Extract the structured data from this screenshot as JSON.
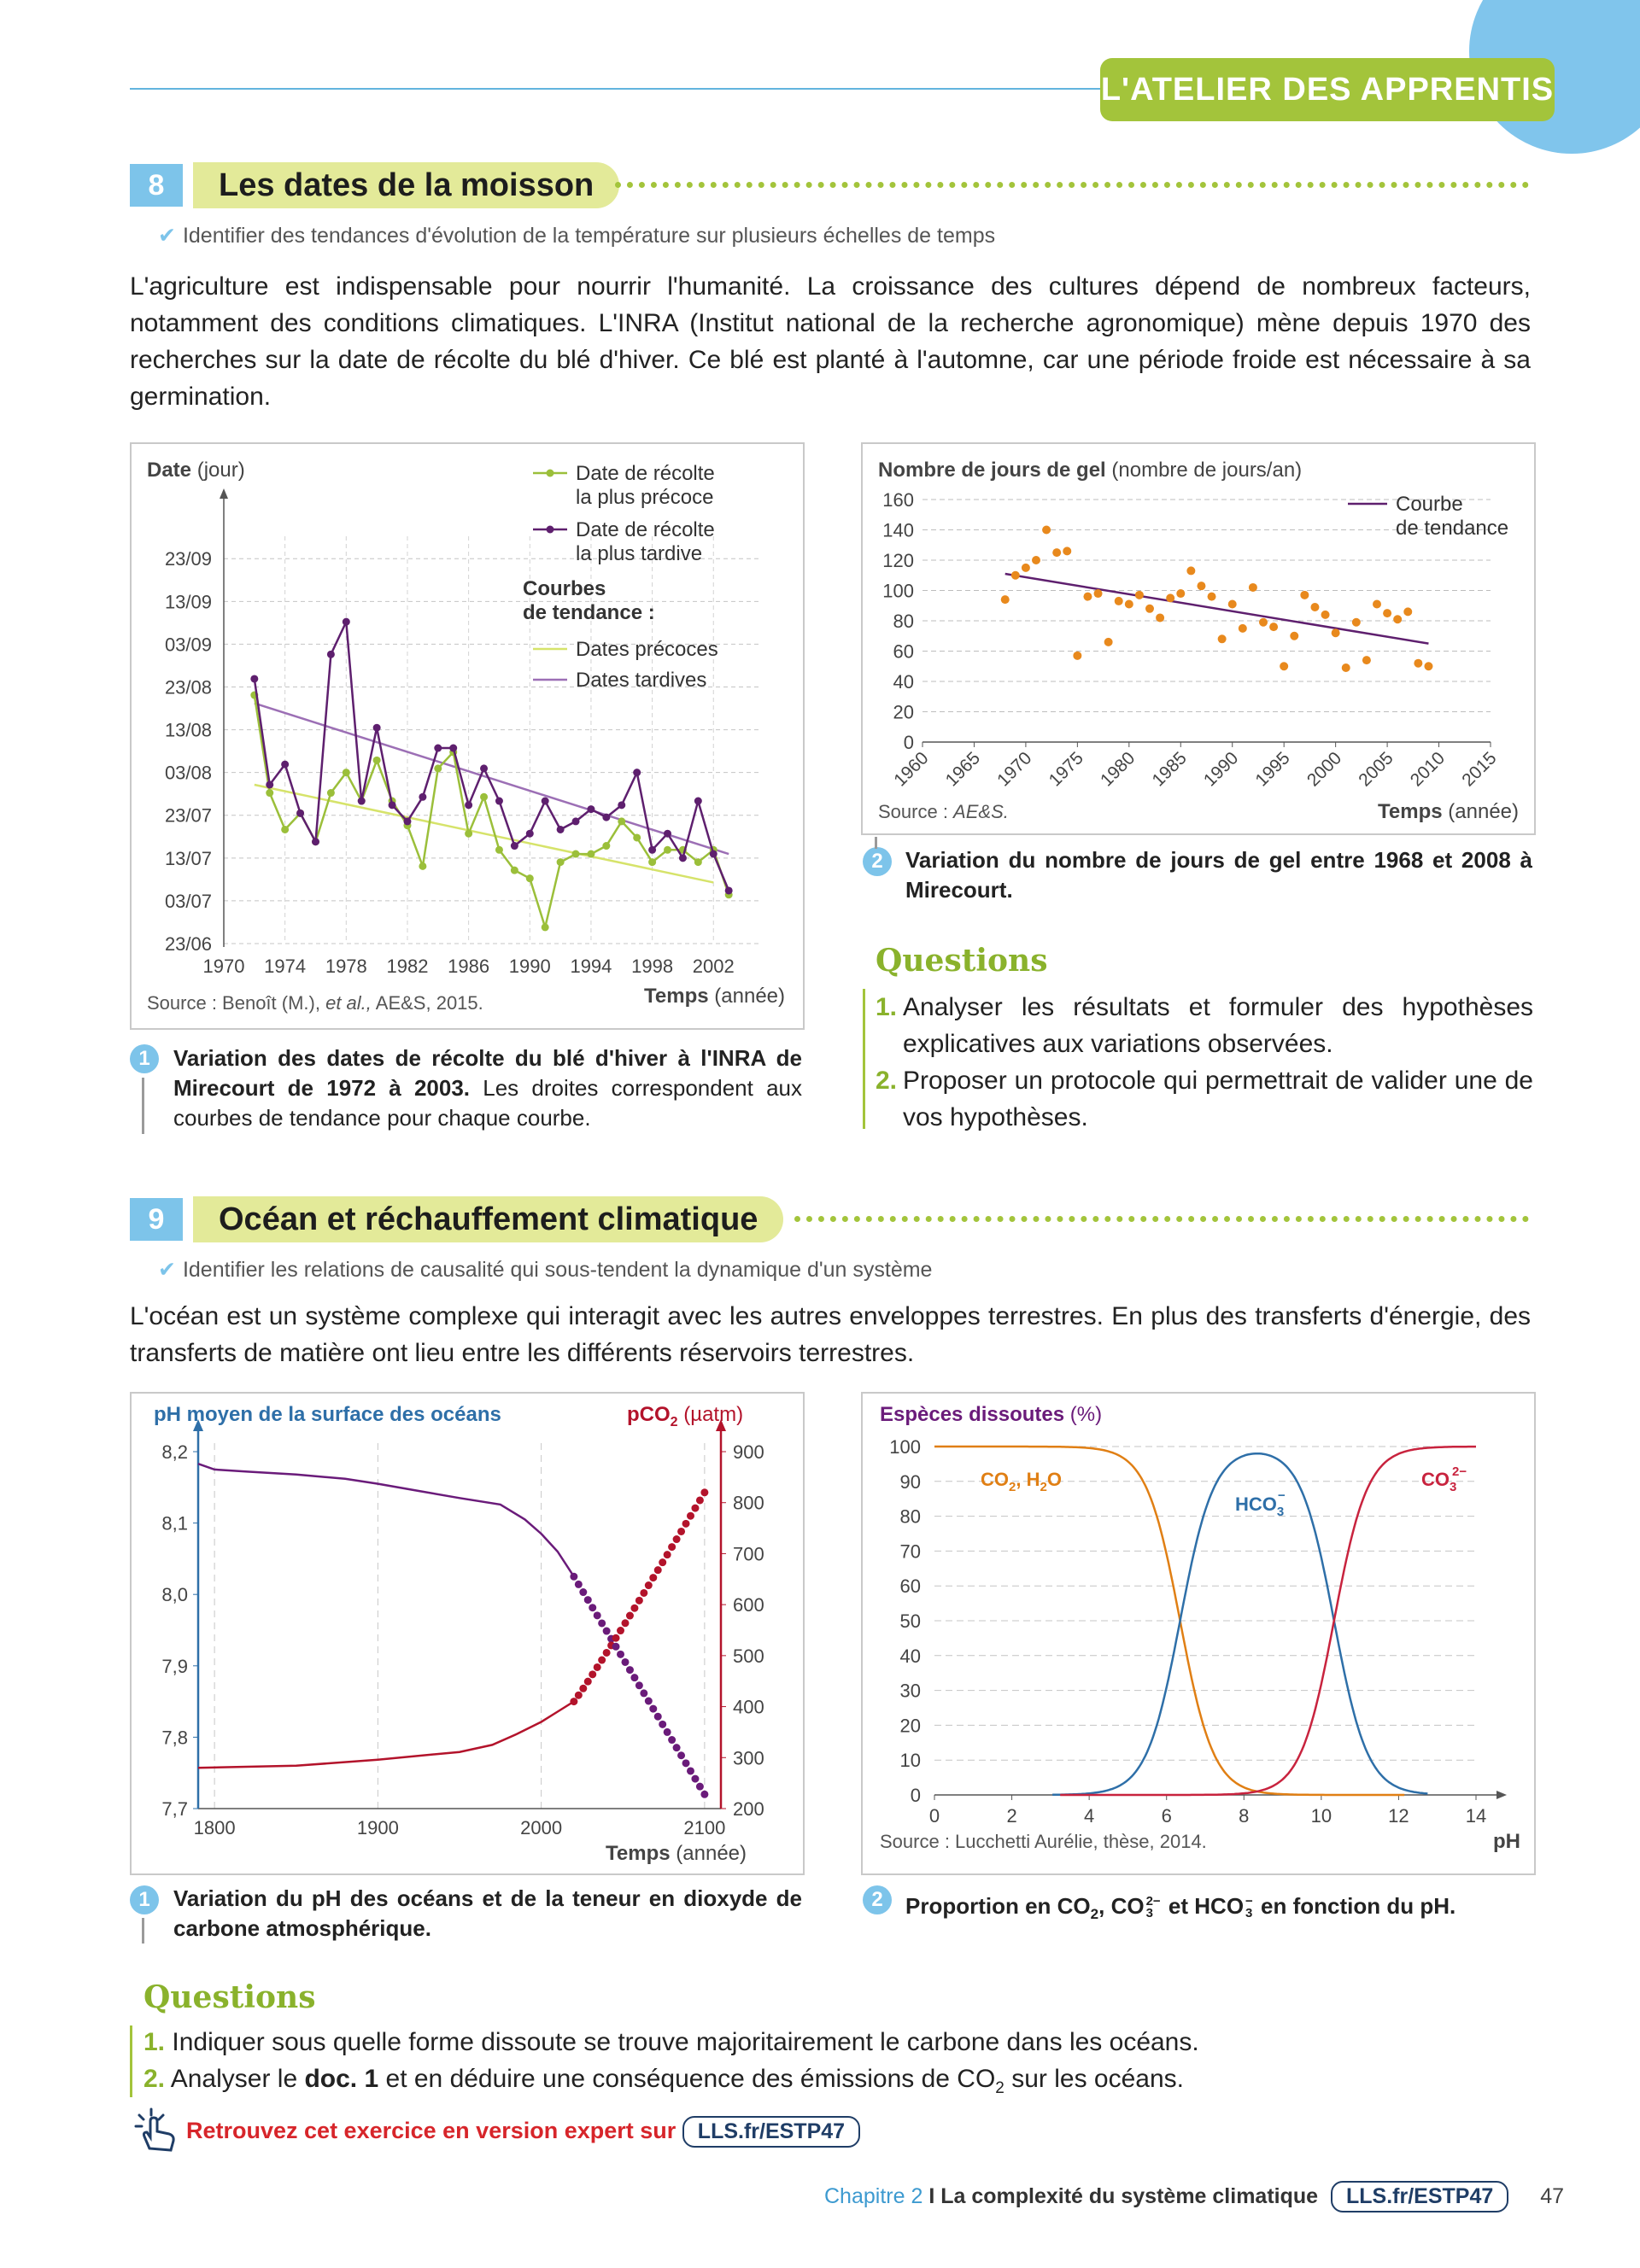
{
  "header": {
    "banner": "L'ATELIER DES APPRENTIS"
  },
  "ex8": {
    "number": "8",
    "title": "Les dates de la moisson",
    "skill": "Identifier des tendances d'évolution de la température sur plusieurs échelles de temps",
    "intro": "L'agriculture est indispensable pour nourrir l'humanité. La croissance des cultures dépend de nombreux facteurs, notamment des conditions climatiques. L'INRA (Institut national de la recherche agronomique) mène depuis 1970 des recherches sur la date de récolte du blé d'hiver. Ce blé est planté à l'automne, car une période froide est nécessaire à sa germination.",
    "doc1": {
      "num": "1",
      "caption_bold": "Variation des dates de récolte du blé d'hiver à l'INRA de Mirecourt de 1972 à 2003.",
      "caption_rest": "Les droites correspondent aux courbes de tendance pour chaque courbe.",
      "ylabel_bold": "Date",
      "ylabel_unit": "(jour)",
      "xlabel_bold": "Temps",
      "xlabel_unit": "(année)",
      "legend": {
        "early": [
          "Date de récolte",
          "la plus précoce"
        ],
        "late": [
          "Date de récolte",
          "la plus tardive"
        ],
        "trend_title": [
          "Courbes",
          "de tendance :"
        ],
        "trend_early": "Dates précoces",
        "trend_late": "Dates tardives"
      },
      "source_a": "Source : Benoît (M.),",
      "source_b": "et al.,",
      "source_c": "AE&S, 2015."
    },
    "doc2": {
      "num": "2",
      "caption": "Variation du nombre de jours de gel entre 1968 et 2008 à Mirecourt.",
      "ylabel_bold": "Nombre de jours de gel",
      "ylabel_unit": "(nombre de jours/an)",
      "xlabel_bold": "Temps",
      "xlabel_unit": "(année)",
      "legend": [
        "Courbe",
        "de tendance"
      ],
      "source_a": "Source :",
      "source_b": "AE&S."
    },
    "questions_title": "Questions",
    "questions": [
      {
        "n": "1.",
        "text": "Analyser les résultats et formuler des hypothèses explicatives aux variations observées."
      },
      {
        "n": "2.",
        "text": "Proposer un protocole qui permettrait de valider une de vos hypothèses."
      }
    ]
  },
  "ex9": {
    "number": "9",
    "title": "Océan et réchauffement climatique",
    "skill": "Identifier les relations de causalité qui sous-tendent la dynamique d'un système",
    "intro": "L'océan est un système complexe qui interagit avec les autres enveloppes terrestres. En plus des transferts d'énergie, des transferts de matière ont lieu entre les différents réservoirs terrestres.",
    "doc1": {
      "num": "1",
      "caption": "Variation du pH des océans et de la teneur en dioxyde de carbone atmosphérique.",
      "ylabel_left": "pH moyen de la surface des océans",
      "ylabel_right": "pCO",
      "ylabel_right_sub": "2",
      "ylabel_right_unit": "(µatm)",
      "xlabel_bold": "Temps",
      "xlabel_unit": "(année)"
    },
    "doc2": {
      "num": "2",
      "caption_a": "Proportion en CO",
      "caption_b": ", CO",
      "caption_c": " et HCO",
      "caption_d": " en fonction du pH.",
      "ylabel_bold": "Espèces dissoutes",
      "ylabel_unit": "(%)",
      "xlabel": "pH",
      "label_co2": "CO",
      "label_h2o": ", H",
      "label_o": "O",
      "label_hco3": "HCO",
      "label_co3": "CO",
      "sub2": "2",
      "sub3": "3",
      "sup_minus": "−",
      "sup_2minus": "2−",
      "source": "Source : Lucchetti Aurélie, thèse, 2014."
    },
    "questions_title": "Questions",
    "questions": [
      {
        "n": "1.",
        "text": "Indiquer sous quelle forme dissoute se trouve majoritairement le carbone dans les océans."
      },
      {
        "n": "2.",
        "a": "Analyser le ",
        "b": "doc. 1",
        "c": " et en déduire une conséquence des émissions de CO",
        "sub": "2",
        "d": " sur les océans."
      }
    ],
    "expert_text": "Retrouvez cet exercice en version expert sur",
    "expert_link": "LLS.fr/ESTP47"
  },
  "footer": {
    "chapter": "Chapitre 2",
    "sep": "I",
    "title": "La complexité du système climatique",
    "link": "LLS.fr/ESTP47",
    "page": "47"
  },
  "chart_data": [
    {
      "type": "line",
      "id": "harvest",
      "x": [
        1972,
        1973,
        1974,
        1975,
        1976,
        1977,
        1978,
        1979,
        1980,
        1981,
        1982,
        1983,
        1984,
        1985,
        1986,
        1987,
        1988,
        1989,
        1990,
        1991,
        1992,
        1993,
        1994,
        1995,
        1996,
        1997,
        1998,
        1999,
        2000,
        2001,
        2002,
        2003
      ],
      "y_labels": [
        "23/06",
        "03/07",
        "13/07",
        "23/07",
        "03/08",
        "13/08",
        "23/08",
        "03/09",
        "13/09",
        "23/09"
      ],
      "y_unit": "days since 23/06",
      "xlim": [
        1970,
        2005
      ],
      "ylim": [
        0,
        100
      ],
      "x_ticks": [
        1970,
        1974,
        1978,
        1982,
        1986,
        1990,
        1994,
        1998,
        2002
      ],
      "series": [
        {
          "name": "Date de récolte la plus précoce",
          "color": "#9bbf3a",
          "values": [
            61,
            37,
            28,
            32,
            25,
            37,
            42,
            35,
            45,
            35,
            29,
            19,
            43,
            47,
            27,
            36,
            23,
            18,
            16,
            4,
            20,
            22,
            22,
            24,
            30,
            26,
            20,
            23,
            23,
            20,
            23,
            12
          ]
        },
        {
          "name": "Date de récolte la plus tardive",
          "color": "#5e1f6e",
          "values": [
            65,
            39,
            44,
            32,
            25,
            71,
            79,
            35,
            53,
            34,
            30,
            36,
            48,
            48,
            34,
            43,
            35,
            24,
            27,
            35,
            28,
            30,
            33,
            31,
            34,
            42,
            23,
            27,
            21,
            35,
            22,
            13
          ]
        },
        {
          "name": "Dates précoces",
          "color": "#d6e36a",
          "trend": [
            [
              1972,
              39
            ],
            [
              2002,
              15
            ]
          ]
        },
        {
          "name": "Dates tardives",
          "color": "#9c6fb5",
          "trend": [
            [
              1972,
              59
            ],
            [
              2003,
              22
            ]
          ]
        }
      ]
    },
    {
      "type": "scatter",
      "id": "frost",
      "xlim": [
        1960,
        2015
      ],
      "ylim": [
        0,
        160
      ],
      "x_ticks": [
        1960,
        1965,
        1970,
        1975,
        1980,
        1985,
        1990,
        1995,
        2000,
        2005,
        2010,
        2015
      ],
      "y_ticks": [
        0,
        20,
        40,
        60,
        80,
        100,
        120,
        140,
        160
      ],
      "points": [
        [
          1968,
          94
        ],
        [
          1969,
          110
        ],
        [
          1970,
          115
        ],
        [
          1971,
          120
        ],
        [
          1972,
          140
        ],
        [
          1973,
          125
        ],
        [
          1974,
          126
        ],
        [
          1975,
          57
        ],
        [
          1976,
          96
        ],
        [
          1977,
          98
        ],
        [
          1978,
          66
        ],
        [
          1979,
          93
        ],
        [
          1980,
          91
        ],
        [
          1981,
          97
        ],
        [
          1982,
          88
        ],
        [
          1983,
          82
        ],
        [
          1984,
          95
        ],
        [
          1985,
          98
        ],
        [
          1986,
          113
        ],
        [
          1987,
          103
        ],
        [
          1988,
          96
        ],
        [
          1989,
          68
        ],
        [
          1990,
          91
        ],
        [
          1991,
          75
        ],
        [
          1992,
          102
        ],
        [
          1993,
          79
        ],
        [
          1994,
          76
        ],
        [
          1995,
          50
        ],
        [
          1996,
          70
        ],
        [
          1997,
          97
        ],
        [
          1998,
          89
        ],
        [
          1999,
          84
        ],
        [
          2000,
          72
        ],
        [
          2001,
          49
        ],
        [
          2002,
          79
        ],
        [
          2003,
          54
        ],
        [
          2004,
          91
        ],
        [
          2005,
          85
        ],
        [
          2006,
          81
        ],
        [
          2007,
          86
        ],
        [
          2008,
          52
        ],
        [
          2009,
          50
        ]
      ],
      "series": [
        {
          "name": "Courbe de tendance",
          "color": "#5e1f6e",
          "trend": [
            [
              1968,
              111
            ],
            [
              2009,
              65
            ]
          ]
        }
      ]
    },
    {
      "type": "line",
      "id": "ph_co2",
      "xlim": [
        1790,
        2110
      ],
      "x_ticks": [
        1800,
        1900,
        2000,
        2100
      ],
      "y_left": {
        "lim": [
          7.7,
          8.2
        ],
        "ticks": [
          7.7,
          7.8,
          7.9,
          8.0,
          8.1,
          8.2
        ],
        "labels": [
          "7,7",
          "7,8",
          "7,9",
          "8,0",
          "8,1",
          "8,2"
        ]
      },
      "y_right": {
        "lim": [
          200,
          900
        ],
        "ticks": [
          200,
          300,
          400,
          500,
          600,
          700,
          800,
          900
        ]
      },
      "series": [
        {
          "name": "pH",
          "color": "#6a1b7a",
          "axis": "left",
          "x": [
            1790,
            1800,
            1820,
            1850,
            1880,
            1900,
            1925,
            1950,
            1975,
            1990,
            2000,
            2010,
            2020
          ],
          "values": [
            8.183,
            8.175,
            8.172,
            8.168,
            8.162,
            8.155,
            8.145,
            8.135,
            8.126,
            8.105,
            8.085,
            8.06,
            8.025
          ],
          "projection_x": [
            2020,
            2100
          ],
          "projection_values": [
            8.025,
            7.72
          ]
        },
        {
          "name": "pCO2",
          "color": "#b3132b",
          "axis": "right",
          "x": [
            1790,
            1850,
            1900,
            1950,
            1970,
            1985,
            2000,
            2010,
            2020
          ],
          "values": [
            280,
            284,
            296,
            311,
            325,
            346,
            370,
            390,
            410
          ],
          "projection_x": [
            2020,
            2100
          ],
          "projection_values": [
            410,
            820
          ]
        }
      ]
    },
    {
      "type": "line",
      "id": "speciation",
      "xlim": [
        0,
        14
      ],
      "ylim": [
        0,
        100
      ],
      "x_ticks": [
        0,
        2,
        4,
        6,
        8,
        10,
        12,
        14
      ],
      "y_ticks": [
        0,
        10,
        20,
        30,
        40,
        50,
        60,
        70,
        80,
        90,
        100
      ],
      "pK1": 6.35,
      "pK2": 10.33,
      "series": [
        {
          "name": "CO2, H2O",
          "color": "#e07f14"
        },
        {
          "name": "HCO3-",
          "color": "#2e6fa8"
        },
        {
          "name": "CO3 2-",
          "color": "#c8233e"
        }
      ]
    }
  ]
}
